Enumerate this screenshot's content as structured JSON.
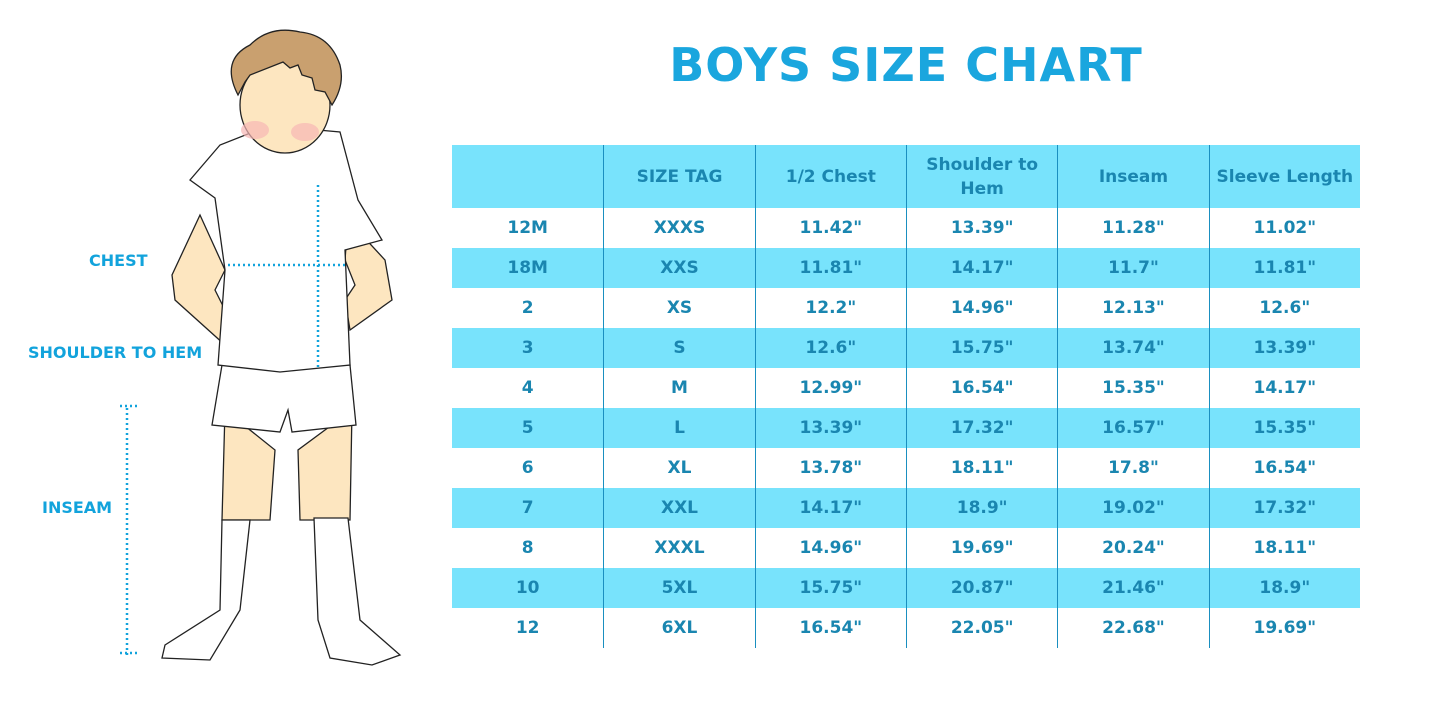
{
  "title": "BOYS SIZE CHART",
  "figure_labels": {
    "chest": "CHEST",
    "shoulder_to_hem": "SHOULDER TO HEM",
    "inseam": "INSEAM"
  },
  "colors": {
    "title": "#1aa6de",
    "header_bg": "#78e3fc",
    "stripe_bg": "#78e3fc",
    "text": "#1a86b0",
    "label": "#12a3dc"
  },
  "chart_data": {
    "type": "table",
    "title": "BOYS SIZE CHART",
    "columns": [
      "",
      "SIZE TAG",
      "1/2 Chest",
      "Shoulder to Hem",
      "Inseam",
      "Sleeve Length"
    ],
    "rows": [
      [
        "12M",
        "XXXS",
        "11.42\"",
        "13.39\"",
        "11.28\"",
        "11.02\""
      ],
      [
        "18M",
        "XXS",
        "11.81\"",
        "14.17\"",
        "11.7\"",
        "11.81\""
      ],
      [
        "2",
        "XS",
        "12.2\"",
        "14.96\"",
        "12.13\"",
        "12.6\""
      ],
      [
        "3",
        "S",
        "12.6\"",
        "15.75\"",
        "13.74\"",
        "13.39\""
      ],
      [
        "4",
        "M",
        "12.99\"",
        "16.54\"",
        "15.35\"",
        "14.17\""
      ],
      [
        "5",
        "L",
        "13.39\"",
        "17.32\"",
        "16.57\"",
        "15.35\""
      ],
      [
        "6",
        "XL",
        "13.78\"",
        "18.11\"",
        "17.8\"",
        "16.54\""
      ],
      [
        "7",
        "XXL",
        "14.17\"",
        "18.9\"",
        "19.02\"",
        "17.32\""
      ],
      [
        "8",
        "XXXL",
        "14.96\"",
        "19.69\"",
        "20.24\"",
        "18.11\""
      ],
      [
        "10",
        "5XL",
        "15.75\"",
        "20.87\"",
        "21.46\"",
        "18.9\""
      ],
      [
        "12",
        "6XL",
        "16.54\"",
        "22.05\"",
        "22.68\"",
        "19.69\""
      ]
    ]
  }
}
